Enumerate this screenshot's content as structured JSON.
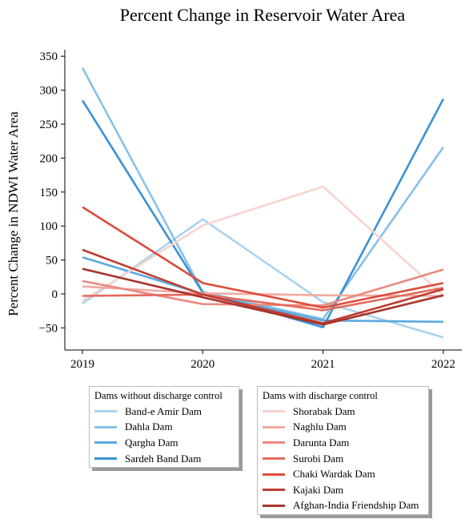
{
  "chart_data": {
    "type": "line",
    "title": "Percent Change in Reservoir Water Area",
    "xlabel": "",
    "ylabel": "Percent Change in NDWI Water Area",
    "categories": [
      "2019",
      "2020",
      "2021",
      "2022"
    ],
    "ylim": [
      -82,
      355
    ],
    "yticks": [
      350,
      300,
      250,
      200,
      150,
      100,
      50,
      0,
      -50
    ],
    "ytick_labels": [
      "350",
      "300",
      "250",
      "200",
      "150",
      "100",
      "50",
      "0",
      "−50"
    ],
    "grid": false,
    "legend_groups": [
      {
        "title": "Dams without discharge control",
        "placement": "below-left",
        "series": [
          {
            "name": "Band-e Amir Dam",
            "color": "#a9d3ee",
            "values": [
              -14,
              110,
              -12,
              -64
            ]
          },
          {
            "name": "Dahla Dam",
            "color": "#86c1e8",
            "values": [
              333,
              3,
              -37,
              216
            ]
          },
          {
            "name": "Qargha Dam",
            "color": "#5aa9df",
            "values": [
              54,
              0,
              -39,
              -41
            ]
          },
          {
            "name": "Sardeh Band Dam",
            "color": "#3a92d4",
            "values": [
              285,
              2,
              -49,
              287
            ]
          }
        ]
      },
      {
        "title": "Dams with discharge control",
        "placement": "below-right",
        "series": [
          {
            "name": "Shorabak Dam",
            "color": "#f8d3ce",
            "values": [
              -10,
              101,
              158,
              -2
            ]
          },
          {
            "name": "Naghlu Dam",
            "color": "#f2aaa2",
            "values": [
              11,
              1,
              -2,
              -3
            ]
          },
          {
            "name": "Darunta Dam",
            "color": "#ea8a80",
            "values": [
              19,
              -15,
              -17,
              36
            ]
          },
          {
            "name": "Surobi Dam",
            "color": "#e36a5d",
            "values": [
              -3,
              -1,
              -24,
              9
            ]
          },
          {
            "name": "Chaki Wardak Dam",
            "color": "#dd4c3c",
            "values": [
              128,
              16,
              -20,
              16
            ]
          },
          {
            "name": "Kajaki Dam",
            "color": "#bf3d31",
            "values": [
              65,
              -1,
              -43,
              7
            ]
          },
          {
            "name": "Afghan-India Friendship Dam",
            "color": "#a8342b",
            "values": [
              37,
              -5,
              -45,
              -2
            ]
          }
        ]
      }
    ]
  }
}
